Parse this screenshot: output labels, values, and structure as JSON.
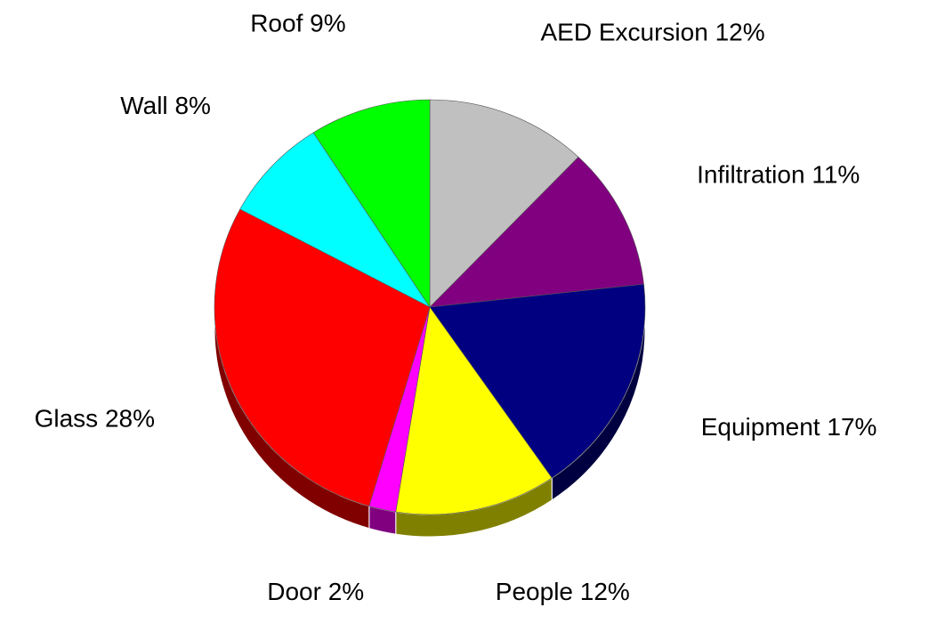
{
  "chart_data": {
    "type": "pie",
    "categories": [
      "AED Excursion",
      "Infiltration",
      "Equipment",
      "People",
      "Door",
      "Glass",
      "Wall",
      "Roof"
    ],
    "values": [
      12,
      11,
      17,
      12,
      2,
      28,
      8,
      9
    ],
    "value_labels": [
      "12%",
      "11%",
      "17%",
      "12%",
      "2%",
      "28%",
      "8%",
      "9%"
    ],
    "colors": [
      "#c0c0c0",
      "#800080",
      "#000080",
      "#ffff00",
      "#ff00ff",
      "#ff0000",
      "#00ffff",
      "#00ff00"
    ]
  }
}
